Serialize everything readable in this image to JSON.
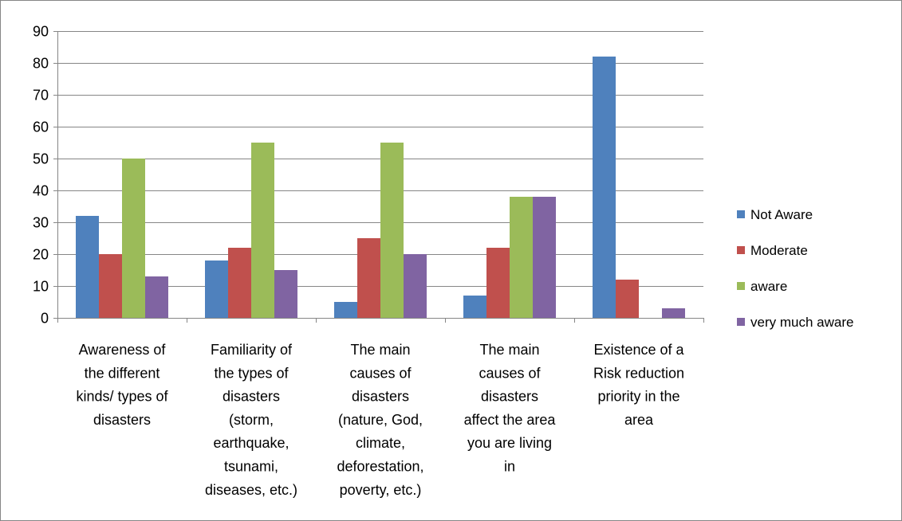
{
  "chart_data": {
    "type": "bar",
    "categories": [
      [
        "Awareness of",
        "the different",
        "kinds/ types of",
        "disasters"
      ],
      [
        "Familiarity of",
        "the types of",
        "disasters",
        "(storm,",
        "earthquake,",
        "tsunami,",
        "diseases, etc.)"
      ],
      [
        "The main",
        "causes of",
        "disasters",
        "(nature, God,",
        "climate,",
        "deforestation,",
        "poverty, etc.)"
      ],
      [
        "The main",
        "causes of",
        "disasters",
        "affect the area",
        "you are living",
        "in"
      ],
      [
        "Existence of a",
        "Risk reduction",
        "priority in the",
        "area"
      ]
    ],
    "series": [
      {
        "name": "Not Aware",
        "color": "#4f81bd",
        "values": [
          32,
          18,
          5,
          7,
          82
        ]
      },
      {
        "name": "Moderate",
        "color": "#c0504d",
        "values": [
          20,
          22,
          25,
          22,
          12
        ]
      },
      {
        "name": "aware",
        "color": "#9bbb59",
        "values": [
          50,
          55,
          55,
          38,
          0
        ]
      },
      {
        "name": "very much aware",
        "color": "#8064a2",
        "values": [
          13,
          15,
          20,
          38,
          3
        ]
      }
    ],
    "yticks": [
      "0",
      "10",
      "20",
      "30",
      "40",
      "50",
      "60",
      "70",
      "80",
      "90"
    ],
    "ylim": [
      0,
      90
    ],
    "grid": true,
    "legend_position": "right",
    "title": "",
    "xlabel": "",
    "ylabel": ""
  }
}
